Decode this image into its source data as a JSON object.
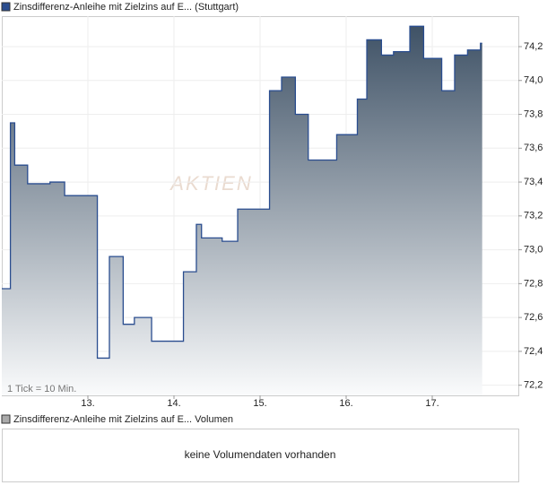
{
  "chart_data": {
    "type": "line",
    "step": "post",
    "legend": "Zinsdifferenz-Anleihe mit Zielzins auf E... (Stuttgart)",
    "watermark": "AKTIEN",
    "note": "1 Tick = 10 Min.",
    "series": [
      {
        "name": "Zinsdifferenz-Anleihe mit Zielzins auf E... (Stuttgart)",
        "color": "#2a4d8f",
        "x": [
          12.0,
          12.1,
          12.15,
          12.3,
          12.56,
          12.73,
          13.11,
          13.25,
          13.41,
          13.54,
          13.74,
          14.11,
          14.26,
          14.32,
          14.56,
          14.74,
          15.11,
          15.25,
          15.41,
          15.56,
          15.89,
          16.13,
          16.24,
          16.41,
          16.55,
          16.74,
          16.9,
          17.11,
          17.26,
          17.41,
          17.56,
          17.58
        ],
        "values": [
          72.77,
          73.75,
          73.5,
          73.39,
          73.4,
          73.32,
          72.36,
          72.96,
          72.56,
          72.6,
          72.46,
          72.87,
          73.15,
          73.07,
          73.05,
          73.24,
          73.94,
          74.02,
          73.8,
          73.53,
          73.68,
          73.89,
          74.24,
          74.15,
          74.17,
          74.32,
          74.13,
          73.94,
          74.15,
          74.18,
          74.22,
          74.22
        ]
      }
    ],
    "xlim": [
      12,
      18
    ],
    "xticks": [
      {
        "value": 13,
        "label": "13."
      },
      {
        "value": 14,
        "label": "14."
      },
      {
        "value": 15,
        "label": "15."
      },
      {
        "value": 16,
        "label": "16."
      },
      {
        "value": 17,
        "label": "17."
      }
    ],
    "ylim": [
      72.14,
      74.38
    ],
    "yticks": [
      {
        "value": 72.2,
        "label": "72,2"
      },
      {
        "value": 72.4,
        "label": "72,4"
      },
      {
        "value": 72.6,
        "label": "72,6"
      },
      {
        "value": 72.8,
        "label": "72,8"
      },
      {
        "value": 73.0,
        "label": "73,0"
      },
      {
        "value": 73.2,
        "label": "73,2"
      },
      {
        "value": 73.4,
        "label": "73,4"
      },
      {
        "value": 73.6,
        "label": "73,6"
      },
      {
        "value": 73.8,
        "label": "73,8"
      },
      {
        "value": 74.0,
        "label": "74,0"
      },
      {
        "value": 74.2,
        "label": "74,2"
      }
    ],
    "grid": true,
    "volume": {
      "legend": "Zinsdifferenz-Anleihe mit Zielzins auf E... Volumen",
      "message": "keine Volumendaten vorhanden"
    }
  }
}
